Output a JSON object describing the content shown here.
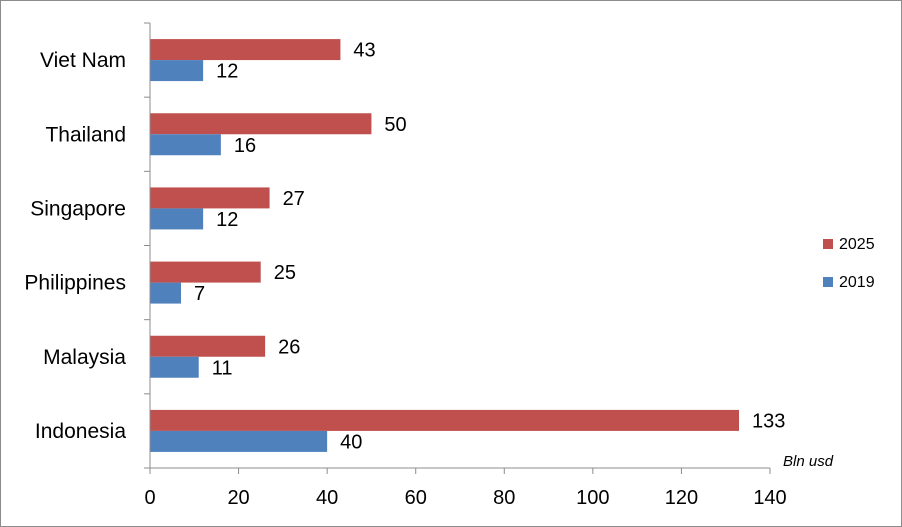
{
  "chart_data": {
    "type": "bar",
    "orientation": "horizontal",
    "categories": [
      "Viet Nam",
      "Thailand",
      "Singapore",
      "Philippines",
      "Malaysia",
      "Indonesia"
    ],
    "series": [
      {
        "name": "2025",
        "color": "#c0504d",
        "values": [
          43,
          50,
          27,
          25,
          26,
          133
        ]
      },
      {
        "name": "2019",
        "color": "#4f81bd",
        "values": [
          12,
          16,
          12,
          7,
          11,
          40
        ]
      }
    ],
    "xlim": [
      0,
      140
    ],
    "xticks": [
      0,
      20,
      40,
      60,
      80,
      100,
      120,
      140
    ],
    "unit_label": "Bln usd",
    "grid": false,
    "legend_position": "right",
    "legend_entries": [
      "2025",
      "2019"
    ]
  }
}
